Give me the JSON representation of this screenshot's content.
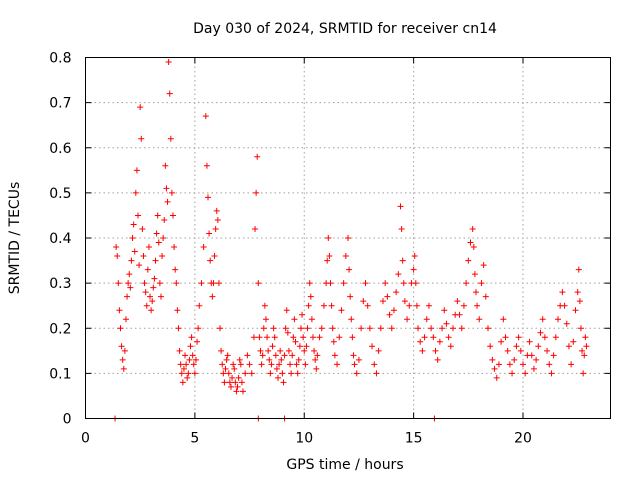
{
  "chart_data": {
    "type": "scatter",
    "title": "Day 030 of 2024, SRMTID for receiver cn14",
    "xlabel": "GPS time / hours",
    "ylabel": "SRMTID / TECUs",
    "xlim": [
      0,
      24
    ],
    "ylim": [
      0,
      0.8
    ],
    "xticks": [
      0,
      5,
      10,
      15,
      20
    ],
    "xtick_labels": [
      "0",
      "5",
      "10",
      "15",
      "20"
    ],
    "yticks": [
      0,
      0.1,
      0.2,
      0.3,
      0.4,
      0.5,
      0.6,
      0.7,
      0.8
    ],
    "ytick_labels": [
      "0",
      "0.1",
      "0.2",
      "0.3",
      "0.4",
      "0.5",
      "0.6",
      "0.7",
      "0.8"
    ],
    "grid": true,
    "marker": "plus",
    "color": "#ff0000",
    "series": [
      {
        "name": "cn14",
        "points": [
          [
            1.35,
            0.0
          ],
          [
            1.4,
            0.38
          ],
          [
            1.45,
            0.36
          ],
          [
            1.5,
            0.3
          ],
          [
            1.55,
            0.24
          ],
          [
            1.6,
            0.2
          ],
          [
            1.65,
            0.16
          ],
          [
            1.7,
            0.13
          ],
          [
            1.75,
            0.11
          ],
          [
            1.8,
            0.15
          ],
          [
            1.85,
            0.22
          ],
          [
            1.9,
            0.27
          ],
          [
            1.95,
            0.3
          ],
          [
            2.0,
            0.32
          ],
          [
            2.05,
            0.29
          ],
          [
            2.1,
            0.35
          ],
          [
            2.15,
            0.4
          ],
          [
            2.2,
            0.43
          ],
          [
            2.25,
            0.37
          ],
          [
            2.3,
            0.5
          ],
          [
            2.35,
            0.55
          ],
          [
            2.4,
            0.45
          ],
          [
            2.45,
            0.34
          ],
          [
            2.5,
            0.69
          ],
          [
            2.55,
            0.62
          ],
          [
            2.6,
            0.42
          ],
          [
            2.65,
            0.36
          ],
          [
            2.7,
            0.3
          ],
          [
            2.75,
            0.28
          ],
          [
            2.8,
            0.25
          ],
          [
            2.85,
            0.33
          ],
          [
            2.9,
            0.38
          ],
          [
            2.95,
            0.27
          ],
          [
            3.0,
            0.24
          ],
          [
            3.05,
            0.26
          ],
          [
            3.1,
            0.29
          ],
          [
            3.15,
            0.31
          ],
          [
            3.2,
            0.35
          ],
          [
            3.25,
            0.41
          ],
          [
            3.3,
            0.45
          ],
          [
            3.35,
            0.39
          ],
          [
            3.4,
            0.3
          ],
          [
            3.45,
            0.27
          ],
          [
            3.5,
            0.36
          ],
          [
            3.55,
            0.4
          ],
          [
            3.6,
            0.44
          ],
          [
            3.65,
            0.56
          ],
          [
            3.7,
            0.51
          ],
          [
            3.75,
            0.48
          ],
          [
            3.8,
            0.79
          ],
          [
            3.85,
            0.72
          ],
          [
            3.9,
            0.62
          ],
          [
            3.95,
            0.5
          ],
          [
            4.0,
            0.45
          ],
          [
            4.05,
            0.38
          ],
          [
            4.1,
            0.33
          ],
          [
            4.15,
            0.3
          ],
          [
            4.2,
            0.24
          ],
          [
            4.25,
            0.2
          ],
          [
            4.3,
            0.15
          ],
          [
            4.35,
            0.12
          ],
          [
            4.4,
            0.1
          ],
          [
            4.45,
            0.08
          ],
          [
            4.5,
            0.11
          ],
          [
            4.55,
            0.14
          ],
          [
            4.6,
            0.12
          ],
          [
            4.65,
            0.09
          ],
          [
            4.7,
            0.1
          ],
          [
            4.75,
            0.13
          ],
          [
            4.8,
            0.16
          ],
          [
            4.85,
            0.18
          ],
          [
            4.9,
            0.14
          ],
          [
            4.95,
            0.12
          ],
          [
            5.0,
            0.1
          ],
          [
            5.05,
            0.13
          ],
          [
            5.1,
            0.17
          ],
          [
            5.15,
            0.2
          ],
          [
            5.2,
            0.25
          ],
          [
            5.3,
            0.3
          ],
          [
            5.4,
            0.38
          ],
          [
            5.5,
            0.67
          ],
          [
            5.55,
            0.56
          ],
          [
            5.6,
            0.49
          ],
          [
            5.65,
            0.41
          ],
          [
            5.7,
            0.35
          ],
          [
            5.75,
            0.3
          ],
          [
            5.8,
            0.27
          ],
          [
            5.85,
            0.3
          ],
          [
            5.9,
            0.36
          ],
          [
            5.95,
            0.42
          ],
          [
            6.0,
            0.46
          ],
          [
            6.05,
            0.44
          ],
          [
            6.1,
            0.3
          ],
          [
            6.15,
            0.2
          ],
          [
            6.2,
            0.15
          ],
          [
            6.25,
            0.12
          ],
          [
            6.3,
            0.1
          ],
          [
            6.35,
            0.08
          ],
          [
            6.4,
            0.11
          ],
          [
            6.45,
            0.13
          ],
          [
            6.5,
            0.14
          ],
          [
            6.55,
            0.1
          ],
          [
            6.6,
            0.08
          ],
          [
            6.65,
            0.07
          ],
          [
            6.7,
            0.09
          ],
          [
            6.75,
            0.12
          ],
          [
            6.8,
            0.11
          ],
          [
            6.85,
            0.08
          ],
          [
            6.9,
            0.06
          ],
          [
            6.95,
            0.07
          ],
          [
            7.0,
            0.09
          ],
          [
            7.05,
            0.13
          ],
          [
            7.1,
            0.12
          ],
          [
            7.15,
            0.08
          ],
          [
            7.2,
            0.06
          ],
          [
            7.3,
            0.1
          ],
          [
            7.4,
            0.14
          ],
          [
            7.5,
            0.12
          ],
          [
            7.6,
            0.1
          ],
          [
            7.7,
            0.18
          ],
          [
            7.75,
            0.42
          ],
          [
            7.8,
            0.5
          ],
          [
            7.85,
            0.58
          ],
          [
            7.9,
            0.3
          ],
          [
            7.95,
            0.18
          ],
          [
            8.0,
            0.15
          ],
          [
            8.05,
            0.12
          ],
          [
            8.1,
            0.14
          ],
          [
            8.15,
            0.2
          ],
          [
            8.2,
            0.25
          ],
          [
            8.25,
            0.22
          ],
          [
            8.3,
            0.18
          ],
          [
            8.35,
            0.15
          ],
          [
            8.4,
            0.13
          ],
          [
            8.45,
            0.1
          ],
          [
            8.5,
            0.12
          ],
          [
            8.55,
            0.16
          ],
          [
            8.6,
            0.2
          ],
          [
            8.65,
            0.18
          ],
          [
            8.7,
            0.14
          ],
          [
            8.75,
            0.11
          ],
          [
            8.8,
            0.09
          ],
          [
            8.85,
            0.12
          ],
          [
            8.9,
            0.15
          ],
          [
            8.95,
            0.13
          ],
          [
            9.0,
            0.1
          ],
          [
            9.05,
            0.08
          ],
          [
            9.1,
            0.14
          ],
          [
            9.15,
            0.2
          ],
          [
            9.2,
            0.24
          ],
          [
            9.25,
            0.19
          ],
          [
            9.3,
            0.15
          ],
          [
            9.35,
            0.12
          ],
          [
            9.4,
            0.1
          ],
          [
            9.45,
            0.14
          ],
          [
            9.5,
            0.18
          ],
          [
            9.55,
            0.22
          ],
          [
            9.6,
            0.17
          ],
          [
            9.65,
            0.12
          ],
          [
            9.7,
            0.1
          ],
          [
            9.75,
            0.13
          ],
          [
            9.8,
            0.16
          ],
          [
            9.85,
            0.2
          ],
          [
            9.9,
            0.23
          ],
          [
            9.95,
            0.18
          ],
          [
            10.0,
            0.15
          ],
          [
            10.05,
            0.12
          ],
          [
            10.1,
            0.16
          ],
          [
            10.15,
            0.2
          ],
          [
            10.2,
            0.25
          ],
          [
            10.25,
            0.3
          ],
          [
            10.3,
            0.27
          ],
          [
            10.35,
            0.22
          ],
          [
            10.4,
            0.18
          ],
          [
            10.45,
            0.15
          ],
          [
            10.5,
            0.13
          ],
          [
            10.55,
            0.11
          ],
          [
            10.6,
            0.14
          ],
          [
            10.7,
            0.18
          ],
          [
            10.8,
            0.2
          ],
          [
            10.9,
            0.25
          ],
          [
            11.0,
            0.3
          ],
          [
            11.05,
            0.35
          ],
          [
            11.1,
            0.4
          ],
          [
            11.15,
            0.36
          ],
          [
            11.2,
            0.3
          ],
          [
            11.25,
            0.25
          ],
          [
            11.3,
            0.2
          ],
          [
            11.35,
            0.17
          ],
          [
            11.4,
            0.14
          ],
          [
            11.5,
            0.12
          ],
          [
            11.6,
            0.18
          ],
          [
            11.7,
            0.24
          ],
          [
            11.8,
            0.3
          ],
          [
            11.9,
            0.36
          ],
          [
            12.0,
            0.4
          ],
          [
            12.05,
            0.33
          ],
          [
            12.1,
            0.27
          ],
          [
            12.15,
            0.22
          ],
          [
            12.2,
            0.18
          ],
          [
            12.25,
            0.14
          ],
          [
            12.3,
            0.12
          ],
          [
            12.4,
            0.1
          ],
          [
            12.5,
            0.13
          ],
          [
            12.6,
            0.2
          ],
          [
            12.7,
            0.26
          ],
          [
            12.8,
            0.3
          ],
          [
            12.9,
            0.25
          ],
          [
            13.0,
            0.2
          ],
          [
            13.1,
            0.16
          ],
          [
            13.2,
            0.12
          ],
          [
            13.3,
            0.1
          ],
          [
            13.4,
            0.15
          ],
          [
            13.5,
            0.2
          ],
          [
            13.6,
            0.26
          ],
          [
            13.7,
            0.3
          ],
          [
            13.8,
            0.27
          ],
          [
            13.9,
            0.23
          ],
          [
            14.0,
            0.2
          ],
          [
            14.1,
            0.24
          ],
          [
            14.2,
            0.28
          ],
          [
            14.3,
            0.32
          ],
          [
            14.4,
            0.47
          ],
          [
            14.45,
            0.42
          ],
          [
            14.5,
            0.35
          ],
          [
            14.55,
            0.3
          ],
          [
            14.6,
            0.26
          ],
          [
            14.7,
            0.22
          ],
          [
            14.8,
            0.25
          ],
          [
            14.9,
            0.3
          ],
          [
            15.0,
            0.33
          ],
          [
            15.05,
            0.36
          ],
          [
            15.1,
            0.3
          ],
          [
            15.15,
            0.25
          ],
          [
            15.2,
            0.2
          ],
          [
            15.3,
            0.17
          ],
          [
            15.4,
            0.15
          ],
          [
            15.5,
            0.18
          ],
          [
            15.6,
            0.22
          ],
          [
            15.7,
            0.25
          ],
          [
            15.8,
            0.2
          ],
          [
            15.9,
            0.18
          ],
          [
            16.0,
            0.15
          ],
          [
            16.1,
            0.13
          ],
          [
            16.2,
            0.17
          ],
          [
            16.3,
            0.2
          ],
          [
            16.4,
            0.24
          ],
          [
            16.5,
            0.21
          ],
          [
            16.6,
            0.18
          ],
          [
            16.7,
            0.16
          ],
          [
            16.8,
            0.2
          ],
          [
            16.9,
            0.23
          ],
          [
            17.0,
            0.26
          ],
          [
            17.1,
            0.23
          ],
          [
            17.2,
            0.2
          ],
          [
            17.3,
            0.25
          ],
          [
            17.4,
            0.3
          ],
          [
            17.5,
            0.35
          ],
          [
            17.6,
            0.39
          ],
          [
            17.7,
            0.42
          ],
          [
            17.75,
            0.38
          ],
          [
            17.8,
            0.32
          ],
          [
            17.85,
            0.28
          ],
          [
            17.9,
            0.25
          ],
          [
            18.0,
            0.22
          ],
          [
            18.1,
            0.3
          ],
          [
            18.2,
            0.34
          ],
          [
            18.3,
            0.27
          ],
          [
            18.4,
            0.2
          ],
          [
            18.5,
            0.16
          ],
          [
            18.6,
            0.13
          ],
          [
            18.7,
            0.11
          ],
          [
            18.8,
            0.09
          ],
          [
            18.9,
            0.12
          ],
          [
            19.0,
            0.17
          ],
          [
            19.1,
            0.22
          ],
          [
            19.2,
            0.18
          ],
          [
            19.3,
            0.15
          ],
          [
            19.4,
            0.12
          ],
          [
            19.5,
            0.1
          ],
          [
            19.6,
            0.13
          ],
          [
            19.7,
            0.16
          ],
          [
            19.8,
            0.18
          ],
          [
            19.9,
            0.15
          ],
          [
            20.0,
            0.12
          ],
          [
            20.1,
            0.1
          ],
          [
            20.2,
            0.14
          ],
          [
            20.3,
            0.17
          ],
          [
            20.4,
            0.14
          ],
          [
            20.5,
            0.11
          ],
          [
            20.6,
            0.13
          ],
          [
            20.7,
            0.16
          ],
          [
            20.8,
            0.19
          ],
          [
            20.9,
            0.22
          ],
          [
            21.0,
            0.18
          ],
          [
            21.1,
            0.15
          ],
          [
            21.2,
            0.12
          ],
          [
            21.3,
            0.1
          ],
          [
            21.4,
            0.14
          ],
          [
            21.5,
            0.18
          ],
          [
            21.6,
            0.22
          ],
          [
            21.7,
            0.25
          ],
          [
            21.8,
            0.28
          ],
          [
            21.9,
            0.25
          ],
          [
            22.0,
            0.21
          ],
          [
            22.1,
            0.16
          ],
          [
            22.2,
            0.12
          ],
          [
            22.3,
            0.17
          ],
          [
            22.4,
            0.24
          ],
          [
            22.5,
            0.28
          ],
          [
            22.55,
            0.33
          ],
          [
            22.6,
            0.26
          ],
          [
            22.65,
            0.2
          ],
          [
            22.7,
            0.15
          ],
          [
            22.75,
            0.1
          ],
          [
            22.8,
            0.14
          ],
          [
            22.85,
            0.18
          ],
          [
            22.9,
            0.16
          ],
          [
            7.9,
            0.0
          ],
          [
            9.1,
            0.0
          ],
          [
            15.95,
            0.0
          ]
        ]
      }
    ]
  }
}
